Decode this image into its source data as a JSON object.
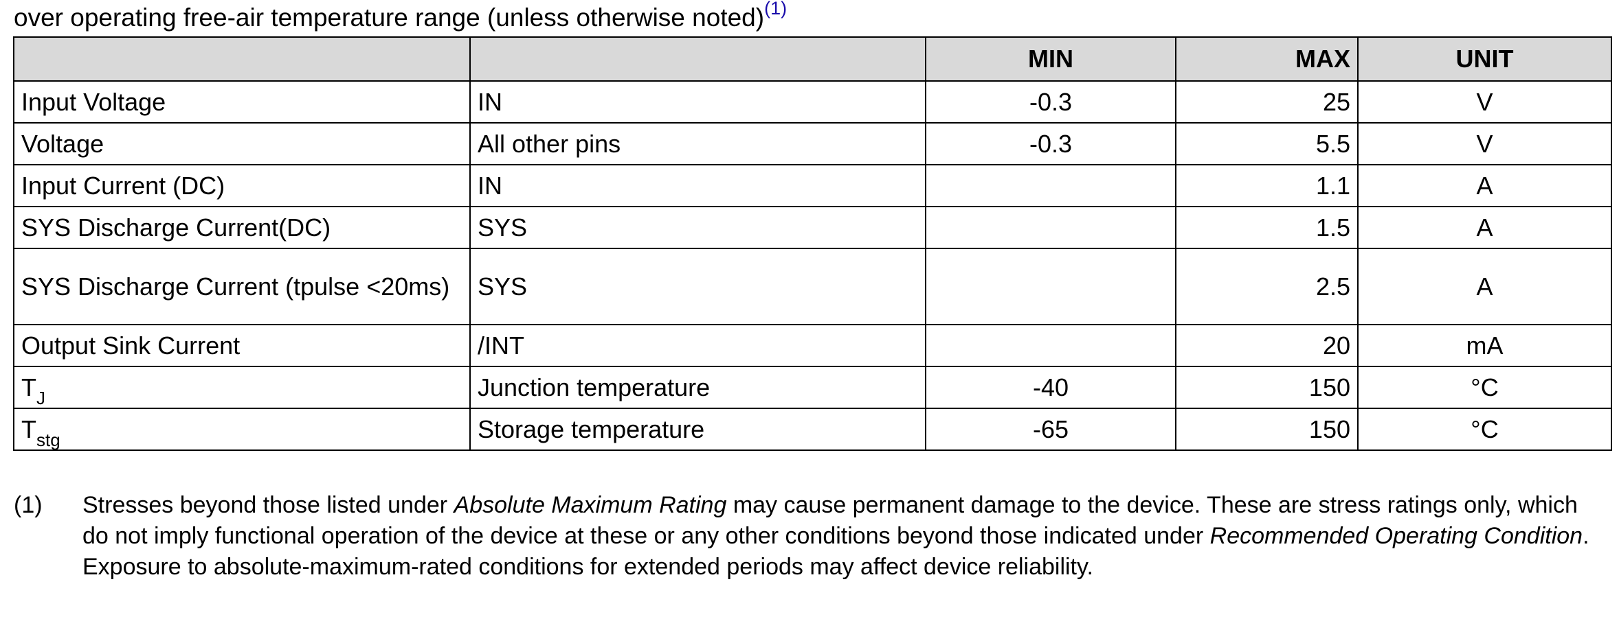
{
  "caption": {
    "text": "over operating free-air temperature range (unless otherwise noted)",
    "footnote_ref": "(1)"
  },
  "table": {
    "headers": {
      "parameter": "",
      "condition": "",
      "min": "MIN",
      "max": "MAX",
      "unit": "UNIT"
    },
    "rows": [
      {
        "parameter": "Input Voltage",
        "parameter_sub": "",
        "condition": "IN",
        "min": "-0.3",
        "max": "25",
        "unit": "V"
      },
      {
        "parameter": "Voltage",
        "parameter_sub": "",
        "condition": "All other pins",
        "min": "-0.3",
        "max": "5.5",
        "unit": "V"
      },
      {
        "parameter": "Input Current (DC)",
        "parameter_sub": "",
        "condition": "IN",
        "min": "",
        "max": "1.1",
        "unit": "A"
      },
      {
        "parameter": "SYS Discharge Current(DC)",
        "parameter_sub": "",
        "condition": "SYS",
        "min": "",
        "max": "1.5",
        "unit": "A"
      },
      {
        "parameter": "SYS Discharge Current (tpulse <20ms)",
        "parameter_sub": "",
        "condition": "SYS",
        "min": "",
        "max": "2.5",
        "unit": "A"
      },
      {
        "parameter": "Output Sink Current",
        "parameter_sub": "",
        "condition": "/INT",
        "min": "",
        "max": "20",
        "unit": "mA"
      },
      {
        "parameter": "T",
        "parameter_sub": "J",
        "condition": "Junction temperature",
        "min": "-40",
        "max": "150",
        "unit": "°C"
      },
      {
        "parameter": "T",
        "parameter_sub": "stg",
        "condition": "Storage temperature",
        "min": "-65",
        "max": "150",
        "unit": "°C"
      }
    ]
  },
  "footnote": {
    "mark": "(1)",
    "part1": "Stresses beyond those listed under ",
    "em1": "Absolute Maximum Rating",
    "part2": " may cause permanent damage to the device. These are stress ratings only, which do not imply functional operation of the device at these or any other conditions beyond those indicated under ",
    "em2": "Recommended Operating Condition",
    "part3": ". Exposure to absolute-maximum-rated conditions for extended periods may affect device reliability."
  }
}
